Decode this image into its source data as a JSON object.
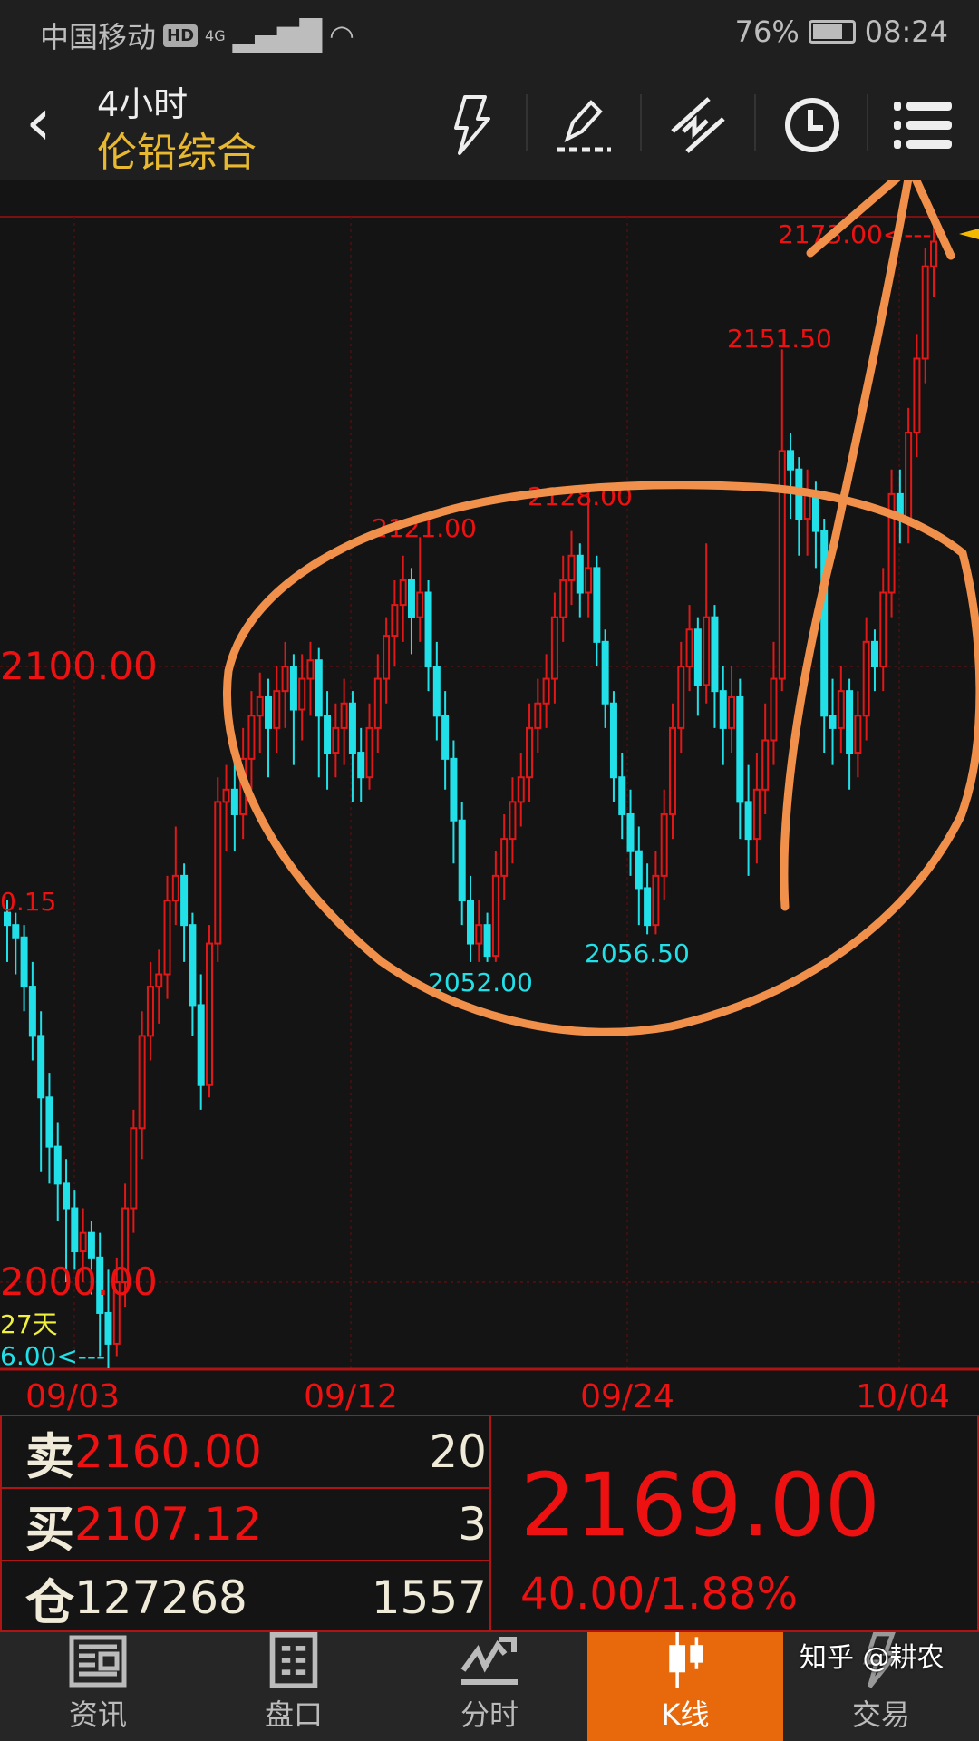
{
  "status_bar": {
    "carrier": "中国移动",
    "hd": "HD",
    "network": "4G",
    "battery": "76%",
    "battery_level": 76,
    "time": "08:24"
  },
  "header": {
    "period": "4小时",
    "instrument": "伦铅综合",
    "icons": [
      "lightning-icon",
      "pencil-draw-icon",
      "trendline-icon",
      "clock-icon",
      "menu-list-icon"
    ]
  },
  "chart_data": {
    "type": "candlestick",
    "price_labels": [
      "2100.00",
      "2000.00"
    ],
    "date_labels": [
      "09/03",
      "09/12",
      "09/24",
      "10/04"
    ],
    "annotations": {
      "high_left": "0.15",
      "low_left": "6.00<---",
      "days": "27天",
      "latest_high": "2173.00<---",
      "peak1": "2121.00",
      "peak2": "2128.00",
      "peak3": "2151.50",
      "trough1": "2052.00",
      "trough2": "2056.50"
    },
    "colors": {
      "up": "#e01818",
      "down": "#22e0e8",
      "annotation": "#f0904a"
    },
    "ohlc": [
      [
        2060,
        2062,
        2052,
        2058
      ],
      [
        2058,
        2060,
        2050,
        2056
      ],
      [
        2056,
        2058,
        2044,
        2048
      ],
      [
        2048,
        2052,
        2036,
        2040
      ],
      [
        2040,
        2044,
        2018,
        2030
      ],
      [
        2030,
        2034,
        2016,
        2022
      ],
      [
        2022,
        2026,
        2010,
        2016
      ],
      [
        2016,
        2020,
        2000,
        2012
      ],
      [
        2012,
        2015,
        2002,
        2005
      ],
      [
        2005,
        2012,
        2000,
        2008
      ],
      [
        2008,
        2010,
        1998,
        2004
      ],
      [
        2004,
        2008,
        1988,
        1995
      ],
      [
        1995,
        2002,
        1986,
        1990
      ],
      [
        1990,
        2004,
        1988,
        2000
      ],
      [
        2000,
        2016,
        1996,
        2012
      ],
      [
        2012,
        2028,
        2008,
        2025
      ],
      [
        2025,
        2044,
        2020,
        2040
      ],
      [
        2040,
        2052,
        2036,
        2048
      ],
      [
        2048,
        2054,
        2042,
        2050
      ],
      [
        2050,
        2066,
        2046,
        2062
      ],
      [
        2062,
        2074,
        2058,
        2066
      ],
      [
        2066,
        2068,
        2052,
        2058
      ],
      [
        2058,
        2060,
        2040,
        2045
      ],
      [
        2045,
        2050,
        2028,
        2032
      ],
      [
        2032,
        2058,
        2030,
        2055
      ],
      [
        2055,
        2082,
        2052,
        2078
      ],
      [
        2078,
        2084,
        2070,
        2080
      ],
      [
        2080,
        2086,
        2070,
        2076
      ],
      [
        2076,
        2090,
        2072,
        2085
      ],
      [
        2085,
        2096,
        2080,
        2092
      ],
      [
        2092,
        2099,
        2086,
        2095
      ],
      [
        2095,
        2098,
        2082,
        2090
      ],
      [
        2090,
        2100,
        2086,
        2096
      ],
      [
        2096,
        2104,
        2090,
        2100
      ],
      [
        2100,
        2102,
        2084,
        2093
      ],
      [
        2093,
        2102,
        2088,
        2098
      ],
      [
        2098,
        2104,
        2092,
        2101
      ],
      [
        2101,
        2103,
        2082,
        2092
      ],
      [
        2092,
        2096,
        2080,
        2086
      ],
      [
        2086,
        2094,
        2082,
        2090
      ],
      [
        2090,
        2098,
        2084,
        2094
      ],
      [
        2094,
        2096,
        2078,
        2086
      ],
      [
        2086,
        2090,
        2078,
        2082
      ],
      [
        2082,
        2094,
        2080,
        2090
      ],
      [
        2090,
        2102,
        2086,
        2098
      ],
      [
        2098,
        2108,
        2094,
        2105
      ],
      [
        2105,
        2114,
        2100,
        2110
      ],
      [
        2110,
        2118,
        2104,
        2114
      ],
      [
        2114,
        2116,
        2102,
        2108
      ],
      [
        2108,
        2121,
        2104,
        2112
      ],
      [
        2112,
        2114,
        2096,
        2100
      ],
      [
        2100,
        2104,
        2088,
        2092
      ],
      [
        2092,
        2096,
        2080,
        2085
      ],
      [
        2085,
        2088,
        2068,
        2075
      ],
      [
        2075,
        2078,
        2058,
        2062
      ],
      [
        2062,
        2066,
        2052,
        2055
      ],
      [
        2055,
        2062,
        2052,
        2058
      ],
      [
        2058,
        2060,
        2052,
        2053
      ],
      [
        2053,
        2070,
        2052,
        2066
      ],
      [
        2066,
        2076,
        2062,
        2072
      ],
      [
        2072,
        2082,
        2068,
        2078
      ],
      [
        2078,
        2086,
        2074,
        2082
      ],
      [
        2082,
        2094,
        2078,
        2090
      ],
      [
        2090,
        2098,
        2086,
        2094
      ],
      [
        2094,
        2102,
        2090,
        2098
      ],
      [
        2098,
        2112,
        2094,
        2108
      ],
      [
        2108,
        2118,
        2104,
        2114
      ],
      [
        2114,
        2122,
        2110,
        2118
      ],
      [
        2118,
        2120,
        2108,
        2112
      ],
      [
        2112,
        2128,
        2108,
        2116
      ],
      [
        2116,
        2118,
        2100,
        2104
      ],
      [
        2104,
        2106,
        2090,
        2094
      ],
      [
        2094,
        2096,
        2078,
        2082
      ],
      [
        2082,
        2086,
        2072,
        2076
      ],
      [
        2076,
        2080,
        2066,
        2070
      ],
      [
        2070,
        2074,
        2058,
        2064
      ],
      [
        2064,
        2068,
        2056.5,
        2058
      ],
      [
        2058,
        2070,
        2056.5,
        2066
      ],
      [
        2066,
        2080,
        2062,
        2076
      ],
      [
        2076,
        2094,
        2072,
        2090
      ],
      [
        2090,
        2104,
        2086,
        2100
      ],
      [
        2100,
        2110,
        2096,
        2106
      ],
      [
        2106,
        2108,
        2092,
        2097
      ],
      [
        2097,
        2120,
        2094,
        2108
      ],
      [
        2108,
        2110,
        2090,
        2096
      ],
      [
        2096,
        2100,
        2084,
        2090
      ],
      [
        2090,
        2100,
        2086,
        2095
      ],
      [
        2095,
        2098,
        2072,
        2078
      ],
      [
        2078,
        2084,
        2066,
        2072
      ],
      [
        2072,
        2086,
        2068,
        2080
      ],
      [
        2080,
        2094,
        2076,
        2088
      ],
      [
        2088,
        2104,
        2084,
        2098
      ],
      [
        2098,
        2151.5,
        2096,
        2135
      ],
      [
        2135,
        2138,
        2124,
        2132
      ],
      [
        2132,
        2134,
        2118,
        2124
      ],
      [
        2124,
        2132,
        2118,
        2128
      ],
      [
        2128,
        2130,
        2116,
        2122
      ],
      [
        2122,
        2124,
        2086,
        2092
      ],
      [
        2092,
        2098,
        2084,
        2090
      ],
      [
        2090,
        2100,
        2086,
        2096
      ],
      [
        2096,
        2098,
        2080,
        2086
      ],
      [
        2086,
        2096,
        2082,
        2092
      ],
      [
        2092,
        2108,
        2088,
        2104
      ],
      [
        2104,
        2106,
        2096,
        2100
      ],
      [
        2100,
        2116,
        2096,
        2112
      ],
      [
        2112,
        2132,
        2108,
        2128
      ],
      [
        2128,
        2132,
        2120,
        2124
      ],
      [
        2124,
        2142,
        2120,
        2138
      ],
      [
        2138,
        2154,
        2134,
        2150
      ],
      [
        2150,
        2168,
        2146,
        2165
      ],
      [
        2165,
        2173,
        2160,
        2169
      ]
    ]
  },
  "quote": {
    "sell_label": "卖",
    "sell_price": "2160.00",
    "sell_qty": "20",
    "buy_label": "买",
    "buy_price": "2107.12",
    "buy_qty": "3",
    "oi_label": "仓",
    "open_interest": "127268",
    "oi_change": "1557",
    "last_price": "2169.00",
    "change": "40.00/1.88%"
  },
  "nav": {
    "items": [
      {
        "label": "资讯",
        "icon": "news-icon"
      },
      {
        "label": "盘口",
        "icon": "orderbook-icon"
      },
      {
        "label": "分时",
        "icon": "intraday-icon"
      },
      {
        "label": "K线",
        "icon": "candlestick-icon",
        "active": true
      },
      {
        "label": "交易",
        "icon": "lightning-icon"
      }
    ]
  },
  "watermark": "知乎 @耕农"
}
